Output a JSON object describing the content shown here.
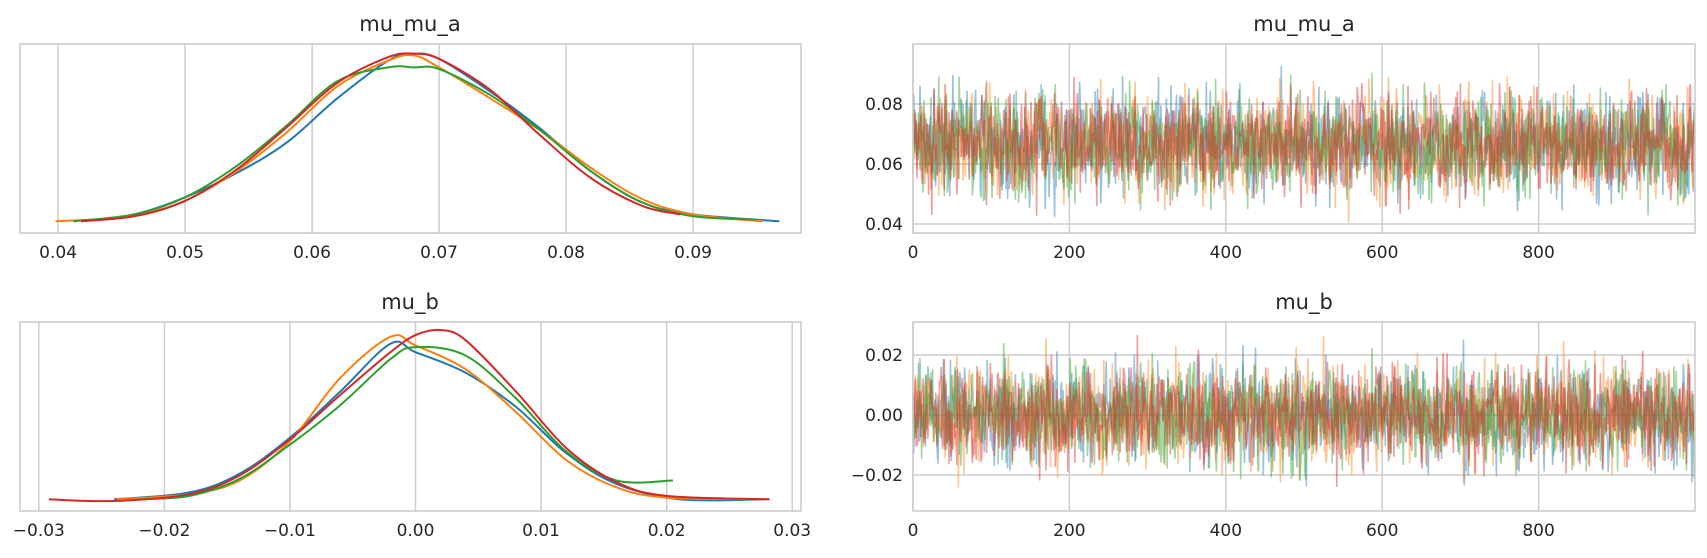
{
  "colors": {
    "chain_0": "#1f77b4",
    "chain_1": "#ff7f0e",
    "chain_2": "#2ca02c",
    "chain_3": "#d62728"
  },
  "chart_data": [
    {
      "type": "line",
      "title": "mu_mu_a",
      "plot_kind": "density",
      "xlim": [
        0.037,
        0.0985
      ],
      "xticks": [
        "0.04",
        "0.05",
        "0.06",
        "0.07",
        "0.08",
        "0.09"
      ],
      "grid": "vertical",
      "y_tick_labels": "none",
      "series": [
        {
          "x": [
            0.0418,
            0.046,
            0.05,
            0.054,
            0.058,
            0.062,
            0.066,
            0.068,
            0.07,
            0.074,
            0.078,
            0.082,
            0.086,
            0.09,
            0.0968
          ],
          "y": [
            0.01,
            0.05,
            0.15,
            0.29,
            0.47,
            0.73,
            0.95,
            0.99,
            0.96,
            0.77,
            0.55,
            0.3,
            0.12,
            0.05,
            0.01
          ]
        },
        {
          "x": [
            0.0398,
            0.046,
            0.05,
            0.054,
            0.058,
            0.062,
            0.066,
            0.068,
            0.07,
            0.074,
            0.078,
            0.082,
            0.086,
            0.09,
            0.0955
          ],
          "y": [
            0.01,
            0.04,
            0.13,
            0.3,
            0.53,
            0.8,
            0.95,
            0.98,
            0.91,
            0.73,
            0.54,
            0.32,
            0.14,
            0.05,
            0.01
          ]
        },
        {
          "x": [
            0.0412,
            0.046,
            0.05,
            0.054,
            0.058,
            0.062,
            0.066,
            0.068,
            0.07,
            0.074,
            0.078,
            0.082,
            0.086,
            0.09,
            0.095
          ],
          "y": [
            0.01,
            0.05,
            0.15,
            0.33,
            0.57,
            0.83,
            0.91,
            0.91,
            0.9,
            0.75,
            0.54,
            0.3,
            0.12,
            0.04,
            0.02
          ]
        },
        {
          "x": [
            0.0418,
            0.046,
            0.05,
            0.054,
            0.058,
            0.062,
            0.066,
            0.068,
            0.07,
            0.074,
            0.078,
            0.082,
            0.086,
            0.089
          ],
          "y": [
            0.01,
            0.04,
            0.13,
            0.31,
            0.56,
            0.82,
            0.97,
            0.99,
            0.96,
            0.78,
            0.51,
            0.26,
            0.1,
            0.05
          ]
        }
      ]
    },
    {
      "type": "line",
      "title": "mu_mu_a",
      "plot_kind": "trace",
      "xlim": [
        0,
        1000
      ],
      "ylim": [
        0.037,
        0.1
      ],
      "xticks": [
        "0",
        "200",
        "400",
        "600",
        "800"
      ],
      "yticks": [
        "0.04",
        "0.06",
        "0.08"
      ],
      "grid": "both",
      "draws": 1000,
      "series_stats": [
        {
          "mean": 0.067,
          "sd": 0.0085,
          "min": 0.042,
          "max": 0.097
        },
        {
          "mean": 0.067,
          "sd": 0.0085,
          "min": 0.04,
          "max": 0.096
        },
        {
          "mean": 0.067,
          "sd": 0.0085,
          "min": 0.043,
          "max": 0.095
        },
        {
          "mean": 0.067,
          "sd": 0.0085,
          "min": 0.043,
          "max": 0.091
        }
      ]
    },
    {
      "type": "line",
      "title": "mu_b",
      "plot_kind": "density",
      "xlim": [
        -0.0315,
        0.0307
      ],
      "xticks": [
        "−0.03",
        "−0.02",
        "−0.01",
        "0.00",
        "0.01",
        "0.02",
        "0.03"
      ],
      "grid": "vertical",
      "y_tick_labels": "none",
      "series": [
        {
          "x": [
            -0.024,
            -0.018,
            -0.014,
            -0.01,
            -0.006,
            -0.002,
            0.0,
            0.004,
            0.008,
            0.012,
            0.016,
            0.021,
            0.028
          ],
          "y": [
            0.01,
            0.05,
            0.16,
            0.37,
            0.64,
            0.92,
            0.87,
            0.75,
            0.55,
            0.28,
            0.1,
            0.01,
            0.01
          ]
        },
        {
          "x": [
            -0.0238,
            -0.018,
            -0.014,
            -0.01,
            -0.006,
            -0.002,
            0.0,
            0.004,
            0.008,
            0.012,
            0.016,
            0.02,
            0.0275
          ],
          "y": [
            0.01,
            0.04,
            0.12,
            0.35,
            0.72,
            0.96,
            0.91,
            0.77,
            0.52,
            0.24,
            0.08,
            0.02,
            0.01
          ]
        },
        {
          "x": [
            -0.022,
            -0.018,
            -0.014,
            -0.01,
            -0.006,
            -0.002,
            0.0,
            0.004,
            0.008,
            0.012,
            0.016,
            0.0205
          ],
          "y": [
            0.01,
            0.03,
            0.13,
            0.33,
            0.56,
            0.83,
            0.9,
            0.85,
            0.6,
            0.29,
            0.12,
            0.12
          ]
        },
        {
          "x": [
            -0.0292,
            -0.024,
            -0.018,
            -0.014,
            -0.01,
            -0.006,
            -0.002,
            0.0,
            0.002,
            0.004,
            0.008,
            0.012,
            0.016,
            0.02,
            0.0282
          ],
          "y": [
            0.01,
            0.0,
            0.04,
            0.15,
            0.36,
            0.62,
            0.87,
            0.97,
            1.0,
            0.94,
            0.64,
            0.31,
            0.11,
            0.03,
            0.01
          ]
        }
      ]
    },
    {
      "type": "line",
      "title": "mu_b",
      "plot_kind": "trace",
      "xlim": [
        0,
        1000
      ],
      "ylim": [
        -0.032,
        0.031
      ],
      "xticks": [
        "0",
        "200",
        "400",
        "600",
        "800"
      ],
      "yticks": [
        "−0.02",
        "0.00",
        "0.02"
      ],
      "grid": "both",
      "draws": 1000,
      "series_stats": [
        {
          "mean": 0.0,
          "sd": 0.0085,
          "min": -0.024,
          "max": 0.025
        },
        {
          "mean": 0.0,
          "sd": 0.0085,
          "min": -0.024,
          "max": 0.028
        },
        {
          "mean": 0.0,
          "sd": 0.0085,
          "min": -0.022,
          "max": 0.024
        },
        {
          "mean": 0.0,
          "sd": 0.0085,
          "min": -0.029,
          "max": 0.028
        }
      ]
    }
  ]
}
